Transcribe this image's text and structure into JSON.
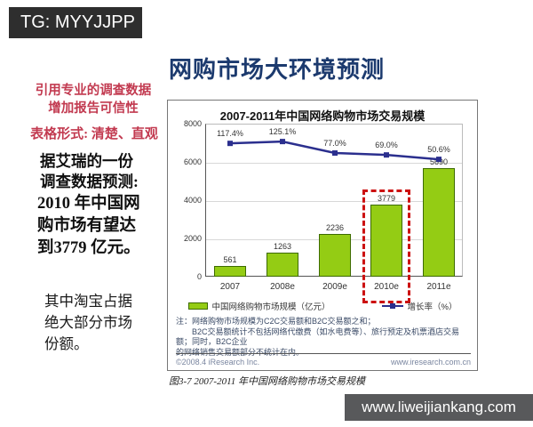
{
  "tag_box": {
    "text": "TG: MYYJJPP"
  },
  "slide_title": "网购市场大环境预测",
  "left_notes": {
    "red_intro": [
      "引用专业的调查数据",
      "增加报告可信性"
    ],
    "red_format": "表格形式: 清楚、直观",
    "survey_intro": [
      "据艾瑞的一份",
      "调查数据预测:"
    ],
    "survey_body": [
      "2010 年中国网",
      "购市场有望达",
      "到3779 亿元。"
    ],
    "taobao": [
      "其中淘宝占据",
      "绝大部分市场",
      "份额。"
    ]
  },
  "chart_data": {
    "type": "bar",
    "title": "2007-2011年中国网络购物市场交易规模",
    "categories": [
      "2007",
      "2008e",
      "2009e",
      "2010e",
      "2011e"
    ],
    "series": [
      {
        "name": "中国网络购物市场规模（亿元）",
        "type": "bar",
        "values": [
          561,
          1263,
          2236,
          3779,
          5690
        ]
      },
      {
        "name": "增长率（%）",
        "type": "line",
        "values": [
          117.4,
          125.1,
          77.0,
          69.0,
          50.6
        ],
        "value_labels": [
          "117.4%",
          "125.1%",
          "77.0%",
          "69.0%",
          "50.6%"
        ]
      }
    ],
    "ylim": [
      0,
      8000
    ],
    "yticks": [
      0,
      2000,
      4000,
      6000,
      8000
    ],
    "grid": true,
    "legend_position": "bottom",
    "highlight_category": "2010e",
    "bar_color": "#94cc14",
    "bar_border_color": "#3d6b00",
    "line_color": "#2b2f8e",
    "highlight_color": "#cc1111"
  },
  "chart_notes": {
    "lines": [
      "注：网络购物市场规模为C2C交易额和B2C交易额之和；",
      "　　B2C交易额统计不包括网络代缴费（如水电费等）、旅行预定及机票酒店交易额；同时，B2C企业",
      "的网络销售交易额部分不统计在内。"
    ],
    "copyright_left": "©2008.4 iResearch Inc.",
    "copyright_right": "www.iresearch.com.cn"
  },
  "caption": "图3-7 2007-2011 年中国网络购物市场交易规模",
  "footer": {
    "url": "www.liweijiankang.com"
  }
}
